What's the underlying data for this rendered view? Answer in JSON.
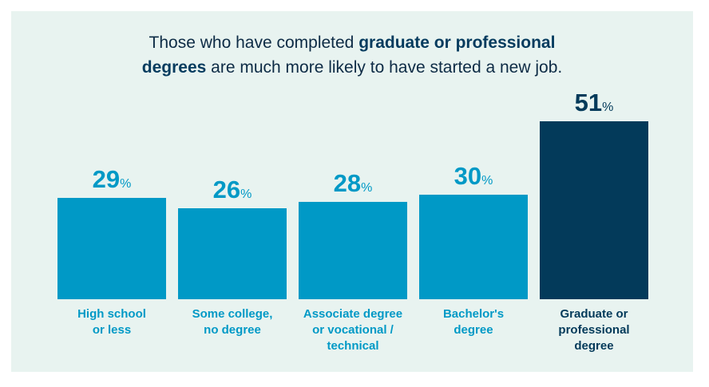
{
  "chart_data": {
    "type": "bar",
    "title": [
      "Those who have completed",
      "graduate or professional degrees",
      "are much more likely to have started a new job."
    ],
    "categories": [
      "High school\nor less",
      "Some college,\nno degree",
      "Associate degree\nor vocational /\ntechnical",
      "Bachelor's\ndegree",
      "Graduate or\nprofessional\ndegree"
    ],
    "values": [
      29,
      26,
      28,
      30,
      51
    ],
    "value_labels": [
      "29%",
      "26%",
      "28%",
      "30%",
      "51%"
    ],
    "colors": [
      "#0099c6",
      "#0099c6",
      "#0099c6",
      "#0099c6",
      "#033a5a"
    ]
  }
}
